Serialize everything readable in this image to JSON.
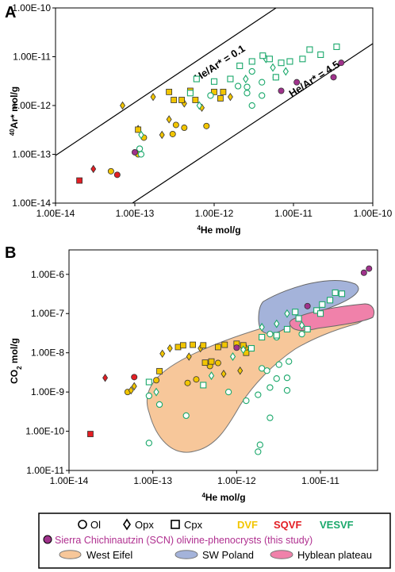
{
  "panels": {
    "a": {
      "letter": "A"
    },
    "b": {
      "letter": "B"
    }
  },
  "chart_data": [
    {
      "type": "scatter",
      "panel": "A",
      "xlabel": "4He mol/g",
      "ylabel": "40Ar* mol/g",
      "xscale": "log",
      "yscale": "log",
      "xlim": [
        1e-14,
        1e-10
      ],
      "ylim": [
        1e-14,
        1e-10
      ],
      "xticks": [
        "1.00E-14",
        "1.00E-13",
        "1.00E-12",
        "1.00E-11",
        "1.00E-10"
      ],
      "yticks": [
        "1.00E-14",
        "1.00E-13",
        "1.00E-12",
        "1.00E-11",
        "1.00E-10"
      ],
      "reference_lines": [
        {
          "label": "He/Ar* = 0.1",
          "ratio": 0.1
        },
        {
          "label": "He/Ar* = 4.5",
          "ratio": 4.5
        }
      ],
      "series": [
        {
          "name": "DVF",
          "color": "#f2c500",
          "ol": [
            [
              5e-14,
              4.5e-14
            ],
            [
              1.1e-13,
              1e-13
            ],
            [
              3e-13,
              2.6e-13
            ],
            [
              1.3e-13,
              2.2e-13
            ],
            [
              3.3e-13,
              4e-13
            ],
            [
              4.2e-13,
              3.5e-13
            ],
            [
              8e-13,
              3.8e-13
            ]
          ],
          "opx": [
            [
              7e-14,
              1e-12
            ],
            [
              1.7e-13,
              1.5e-12
            ],
            [
              1.1e-13,
              3.3e-13
            ],
            [
              2.2e-13,
              2.5e-13
            ],
            [
              2.7e-13,
              5.2e-13
            ],
            [
              4.2e-13,
              1.1e-12
            ],
            [
              7e-13,
              9e-13
            ],
            [
              1.6e-12,
              1.5e-12
            ]
          ],
          "cpx": [
            [
              2.7e-13,
              1.9e-12
            ],
            [
              3.1e-13,
              1.3e-12
            ],
            [
              5e-13,
              2e-12
            ],
            [
              5.8e-13,
              1.3e-12
            ],
            [
              3.9e-13,
              1.3e-12
            ],
            [
              1e-12,
              1.9e-12
            ],
            [
              1.3e-12,
              1.9e-12
            ],
            [
              1.2e-12,
              1.4e-12
            ],
            [
              1.1e-13,
              3.2e-13
            ]
          ]
        },
        {
          "name": "SQVF",
          "color": "#e31e24",
          "ol": [
            [
              6e-14,
              3.8e-14
            ]
          ],
          "opx": [
            [
              3e-14,
              5e-14
            ]
          ],
          "cpx": [
            [
              2e-14,
              2.9e-14
            ]
          ]
        },
        {
          "name": "VESVF",
          "color": "#1aa86b",
          "ol": [
            [
              1.2e-13,
              1e-13
            ],
            [
              1.15e-13,
              1.3e-13
            ],
            [
              9e-13,
              1.6e-12
            ],
            [
              2.6e-12,
              1.8e-12
            ],
            [
              2.6e-12,
              2.4e-12
            ],
            [
              4e-12,
              3e-12
            ],
            [
              2e-12,
              2.5e-12
            ],
            [
              4e-12,
              1.6e-12
            ],
            [
              3e-12,
              1e-12
            ],
            [
              6e-12,
              3.8e-12
            ],
            [
              3e-12,
              5e-12
            ]
          ],
          "opx": [
            [
              1.2e-13,
              2.5e-13
            ],
            [
              6.5e-13,
              1e-12
            ],
            [
              2.5e-12,
              3.5e-12
            ],
            [
              4.5e-12,
              9e-12
            ],
            [
              5.5e-12,
              6e-12
            ],
            [
              8e-12,
              5e-12
            ]
          ],
          "cpx": [
            [
              6e-13,
              3.5e-12
            ],
            [
              5e-13,
              1.8e-12
            ],
            [
              1e-12,
              3.1e-12
            ],
            [
              1.6e-12,
              3.5e-12
            ],
            [
              2.1e-12,
              6.5e-12
            ],
            [
              3e-12,
              8e-12
            ],
            [
              4.1e-12,
              1.05e-11
            ],
            [
              5e-12,
              9e-12
            ],
            [
              7e-12,
              7.5e-12
            ],
            [
              9e-12,
              8e-12
            ],
            [
              1.3e-11,
              9e-12
            ],
            [
              1.6e-11,
              1.4e-11
            ],
            [
              2.2e-11,
              1.1e-11
            ],
            [
              3.5e-11,
              1.6e-11
            ],
            [
              6e-12,
              3.8e-12
            ]
          ]
        },
        {
          "name": "Sierra Chichinautzin (SCN) olivine-phenocrysts (this study)",
          "color": "#a0328c",
          "ol": [
            [
              7e-12,
              2e-12
            ],
            [
              1.1e-11,
              3e-12
            ],
            [
              3.2e-11,
              3.8e-12
            ],
            [
              4e-11,
              7.5e-12
            ],
            [
              1e-13,
              1.1e-13
            ]
          ]
        }
      ]
    },
    {
      "type": "scatter",
      "panel": "B",
      "xlabel": "4He mol/g",
      "ylabel": "CO2 mol/g",
      "xscale": "log",
      "yscale": "log",
      "xlim": [
        1e-14,
        4.8e-11
      ],
      "ylim": [
        1e-11,
        4.2e-06
      ],
      "xticks": [
        "1.00E-14",
        "1.00E-13",
        "1.00E-12",
        "1.00E-11"
      ],
      "yticks": [
        "1.00E-11",
        "1.00E-10",
        "1.00E-9",
        "1.00E-8",
        "1.00E-7",
        "1.00E-6"
      ],
      "fields": [
        {
          "name": "West Eifel",
          "color": "#f7c79a"
        },
        {
          "name": "SW Poland",
          "color": "#a4b3da"
        },
        {
          "name": "Hyblean plateau",
          "color": "#f081aa"
        }
      ],
      "series": [
        {
          "name": "DVF",
          "color": "#f2c500",
          "ol": [
            [
              5e-14,
              1e-09
            ],
            [
              1.1e-13,
              2e-09
            ],
            [
              2.6e-13,
              1.7e-09
            ],
            [
              3.3e-13,
              2.1e-09
            ],
            [
              4.8e-13,
              4.6e-09
            ],
            [
              6e-13,
              5.5e-09
            ]
          ],
          "opx": [
            [
              5.5e-14,
              1.1e-09
            ],
            [
              6e-14,
              1.4e-09
            ],
            [
              1.3e-13,
              9.5e-09
            ],
            [
              1.6e-13,
              1.3e-08
            ],
            [
              2.7e-13,
              8e-09
            ],
            [
              3.7e-13,
              1.3e-08
            ],
            [
              7e-13,
              2.9e-09
            ],
            [
              1.1e-12,
              3.5e-09
            ],
            [
              1.3e-12,
              1.3e-08
            ]
          ],
          "cpx": [
            [
              1.2e-13,
              3.4e-09
            ],
            [
              2e-13,
              1.4e-08
            ],
            [
              2.3e-13,
              1.55e-08
            ],
            [
              3e-13,
              1.6e-08
            ],
            [
              4e-13,
              1.55e-08
            ],
            [
              4.2e-13,
              5.6e-09
            ],
            [
              5e-13,
              6e-09
            ],
            [
              6e-13,
              1.4e-08
            ],
            [
              7.2e-13,
              1.6e-08
            ],
            [
              1e-12,
              1.7e-08
            ],
            [
              1.2e-12,
              1.55e-08
            ],
            [
              1.3e-12,
              1e-08
            ]
          ]
        },
        {
          "name": "SQVF",
          "color": "#e31e24",
          "ol": [
            [
              6e-14,
              2.4e-09
            ]
          ],
          "opx": [
            [
              2.7e-14,
              2.3e-09
            ]
          ],
          "cpx": [
            [
              1.8e-14,
              8.5e-11
            ]
          ]
        },
        {
          "name": "VESVF",
          "color": "#1aa86b",
          "ol": [
            [
              9e-14,
              8e-10
            ],
            [
              1.2e-13,
              4.8e-10
            ],
            [
              9e-14,
              5e-11
            ],
            [
              2.5e-13,
              2.5e-10
            ],
            [
              8e-13,
              1e-09
            ],
            [
              1.8e-12,
              8.5e-10
            ],
            [
              2.5e-12,
              1.3e-09
            ],
            [
              3e-12,
              2.2e-09
            ],
            [
              4e-12,
              2.3e-09
            ],
            [
              2e-12,
              4e-09
            ],
            [
              2.3e-12,
              3.5e-09
            ],
            [
              4e-12,
              1.1e-09
            ],
            [
              1.3e-12,
              6e-10
            ],
            [
              1.8e-12,
              3e-11
            ],
            [
              1.9e-12,
              4.5e-11
            ],
            [
              2.5e-12,
              2.2e-10
            ],
            [
              3.2e-12,
              5e-09
            ],
            [
              4.2e-12,
              6e-09
            ],
            [
              6e-12,
              3e-08
            ],
            [
              2.5e-12,
              3e-08
            ],
            [
              3e-12,
              2.5e-08
            ]
          ],
          "opx": [
            [
              1.1e-13,
              1e-09
            ],
            [
              5e-13,
              2.6e-09
            ],
            [
              9e-13,
              8e-09
            ],
            [
              1.2e-12,
              1.2e-08
            ],
            [
              2e-12,
              4.5e-08
            ],
            [
              3e-12,
              5.5e-08
            ],
            [
              4e-12,
              1e-07
            ],
            [
              6e-12,
              5e-08
            ]
          ],
          "cpx": [
            [
              9e-14,
              1.8e-09
            ],
            [
              4e-13,
              1.5e-09
            ],
            [
              1.5e-12,
              1.3e-08
            ],
            [
              2e-12,
              2.5e-08
            ],
            [
              3e-12,
              2.8e-08
            ],
            [
              4e-12,
              4e-08
            ],
            [
              5e-12,
              1.1e-07
            ],
            [
              5.5e-12,
              7.5e-08
            ],
            [
              7e-12,
              4e-08
            ],
            [
              9e-12,
              1.2e-07
            ],
            [
              1.05e-11,
              1.7e-07
            ],
            [
              1.3e-11,
              2.2e-07
            ],
            [
              1.5e-11,
              3.4e-07
            ],
            [
              1.8e-11,
              3.2e-07
            ],
            [
              1e-11,
              1e-07
            ]
          ]
        },
        {
          "name": "Sierra Chichinautzin (SCN) olivine-phenocrysts (this study)",
          "color": "#a0328c",
          "ol": [
            [
              1e-12,
              1.35e-08
            ],
            [
              7e-12,
              1.55e-07
            ],
            [
              3.3e-11,
              1.1e-06
            ],
            [
              3.8e-11,
              1.4e-06
            ]
          ]
        }
      ]
    }
  ],
  "legend": {
    "symbols": [
      {
        "glyph": "○",
        "label": "Ol"
      },
      {
        "glyph": "◇",
        "label": "Opx"
      },
      {
        "glyph": "□",
        "label": "Cpx"
      }
    ],
    "groups": [
      {
        "label": "DVF",
        "color": "#f2c500"
      },
      {
        "label": "SQVF",
        "color": "#e31e24"
      },
      {
        "label": "VESVF",
        "color": "#1aa86b"
      }
    ],
    "scn": {
      "label": "Sierra Chichinautzin (SCN) olivine-phenocrysts (this study)",
      "color": "#b03090"
    },
    "fields": [
      {
        "label": "West Eifel",
        "color": "#f7c79a"
      },
      {
        "label": "SW Poland",
        "color": "#a4b3da"
      },
      {
        "label": "Hyblean plateau",
        "color": "#f081aa"
      }
    ]
  }
}
